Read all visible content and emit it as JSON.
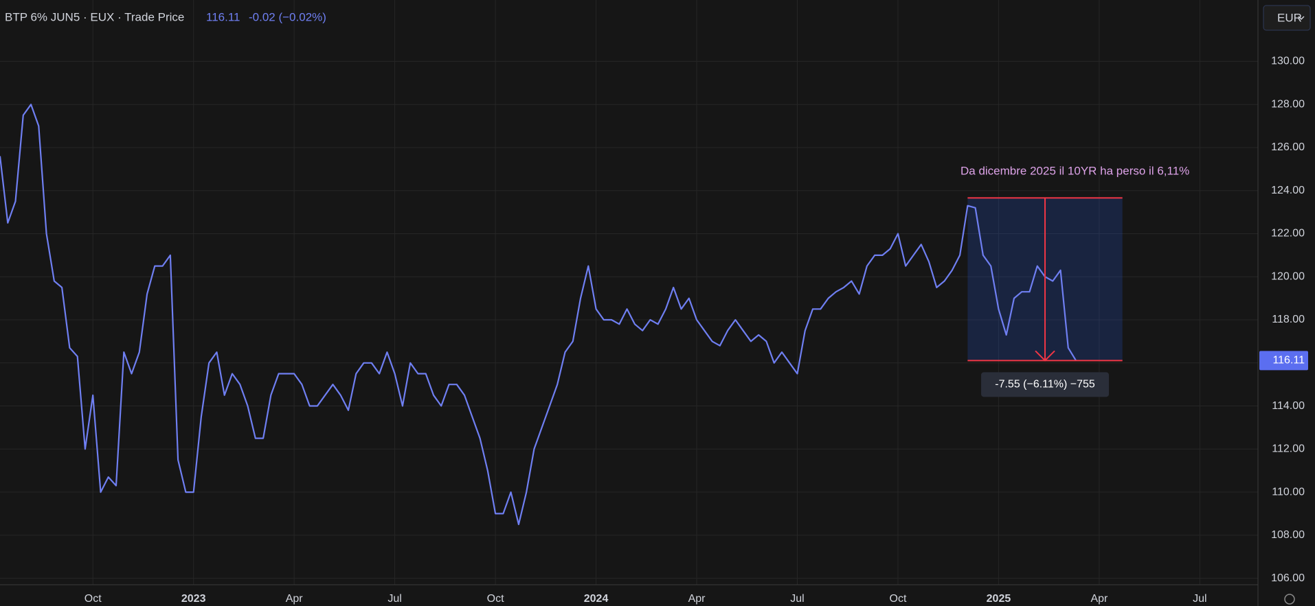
{
  "chart_data": {
    "type": "line",
    "title": "BTP 6% JUN5 · EUX · Trade Price",
    "last_price": 116.11,
    "change": "-0.02 (−0.02%)",
    "currency": "EUR",
    "annotation": "Da dicembre 2025 il 10YR ha perso il 6,11%",
    "measure": {
      "top": 123.66,
      "bottom": 116.11,
      "x_span": [
        125,
        145
      ],
      "label": "-7.55 (−6.11%) −755",
      "color": "#f23645"
    },
    "categories": [
      null,
      null,
      null,
      null,
      null,
      null,
      null,
      null,
      null,
      null,
      null,
      null,
      "Oct",
      null,
      null,
      null,
      null,
      null,
      null,
      null,
      null,
      null,
      null,
      null,
      null,
      "2023",
      null,
      null,
      null,
      null,
      null,
      null,
      null,
      null,
      null,
      null,
      null,
      null,
      "Apr",
      null,
      null,
      null,
      null,
      null,
      null,
      null,
      null,
      null,
      null,
      null,
      null,
      "Jul",
      null,
      null,
      null,
      null,
      null,
      null,
      null,
      null,
      null,
      null,
      null,
      null,
      "Oct",
      null,
      null,
      null,
      null,
      null,
      null,
      null,
      null,
      null,
      null,
      null,
      null,
      "2024",
      null,
      null,
      null,
      null,
      null,
      null,
      null,
      null,
      null,
      null,
      null,
      null,
      "Apr",
      null,
      null,
      null,
      null,
      null,
      null,
      null,
      null,
      null,
      null,
      null,
      null,
      "Jul",
      null,
      null,
      null,
      null,
      null,
      null,
      null,
      null,
      null,
      null,
      null,
      null,
      "Oct",
      null,
      null,
      null,
      null,
      null,
      null,
      null,
      null,
      null,
      null,
      null,
      null,
      "2025",
      null,
      null,
      null,
      null,
      null,
      null,
      null,
      null,
      null,
      null,
      null,
      null,
      "Apr",
      null,
      null,
      null,
      null,
      null,
      null,
      null,
      null,
      null,
      null,
      null,
      null,
      "Jul"
    ],
    "series": [
      {
        "name": "BTP 6% JUN5",
        "color": "#6f7ff2",
        "values": [
          125.6,
          122.5,
          123.5,
          127.5,
          128,
          127,
          122,
          119.8,
          119.5,
          116.7,
          116.3,
          112,
          114.5,
          110,
          110.7,
          110.3,
          116.5,
          115.5,
          116.5,
          119.2,
          120.5,
          120.5,
          121,
          111.5,
          110,
          110,
          113.5,
          116,
          116.5,
          114.5,
          115.5,
          115,
          114,
          112.5,
          112.5,
          114.5,
          115.5,
          115.5,
          115.5,
          115,
          114,
          114,
          114.5,
          115,
          114.5,
          113.8,
          115.5,
          116,
          116,
          115.5,
          116.5,
          115.5,
          114,
          116,
          115.5,
          115.5,
          114.5,
          114,
          115,
          115,
          114.5,
          113.5,
          112.5,
          111,
          109,
          109,
          110,
          108.5,
          110,
          112,
          113,
          114,
          115,
          116.5,
          117,
          119,
          120.5,
          118.5,
          118,
          118,
          117.8,
          118.5,
          117.8,
          117.5,
          118,
          117.8,
          118.5,
          119.5,
          118.5,
          119,
          118,
          117.5,
          117,
          116.8,
          117.5,
          118,
          117.5,
          117,
          117.3,
          117,
          116,
          116.5,
          116,
          115.5,
          117.5,
          118.5,
          118.5,
          119,
          119.3,
          119.5,
          119.8,
          119.2,
          120.5,
          121,
          121,
          121.3,
          122,
          120.5,
          121,
          121.5,
          120.7,
          119.5,
          119.8,
          120.3,
          121,
          123.3,
          123.2,
          121,
          120.5,
          118.5,
          117.3,
          119,
          119.3,
          119.3,
          120.5,
          120,
          119.8,
          120.3,
          116.7,
          116.11,
          null,
          null,
          null,
          null,
          null,
          null,
          null,
          null,
          null,
          null,
          null,
          null,
          null,
          null,
          null,
          null
        ]
      }
    ],
    "ylim": [
      105.7,
      132.85
    ],
    "yticks": [
      {
        "value": 106,
        "label": "106.00"
      },
      {
        "value": 108,
        "label": "108.00"
      },
      {
        "value": 110,
        "label": "110.00"
      },
      {
        "value": 112,
        "label": "112.00"
      },
      {
        "value": 114,
        "label": "114.00"
      },
      {
        "value": 116,
        "label": "116.00"
      },
      {
        "value": 118,
        "label": "118.00"
      },
      {
        "value": 120,
        "label": "120.00"
      },
      {
        "value": 122,
        "label": "122.00"
      },
      {
        "value": 124,
        "label": "124.00"
      },
      {
        "value": 126,
        "label": "126.00"
      },
      {
        "value": 128,
        "label": "128.00"
      },
      {
        "value": 130,
        "label": "130.00"
      }
    ],
    "grid": true
  }
}
